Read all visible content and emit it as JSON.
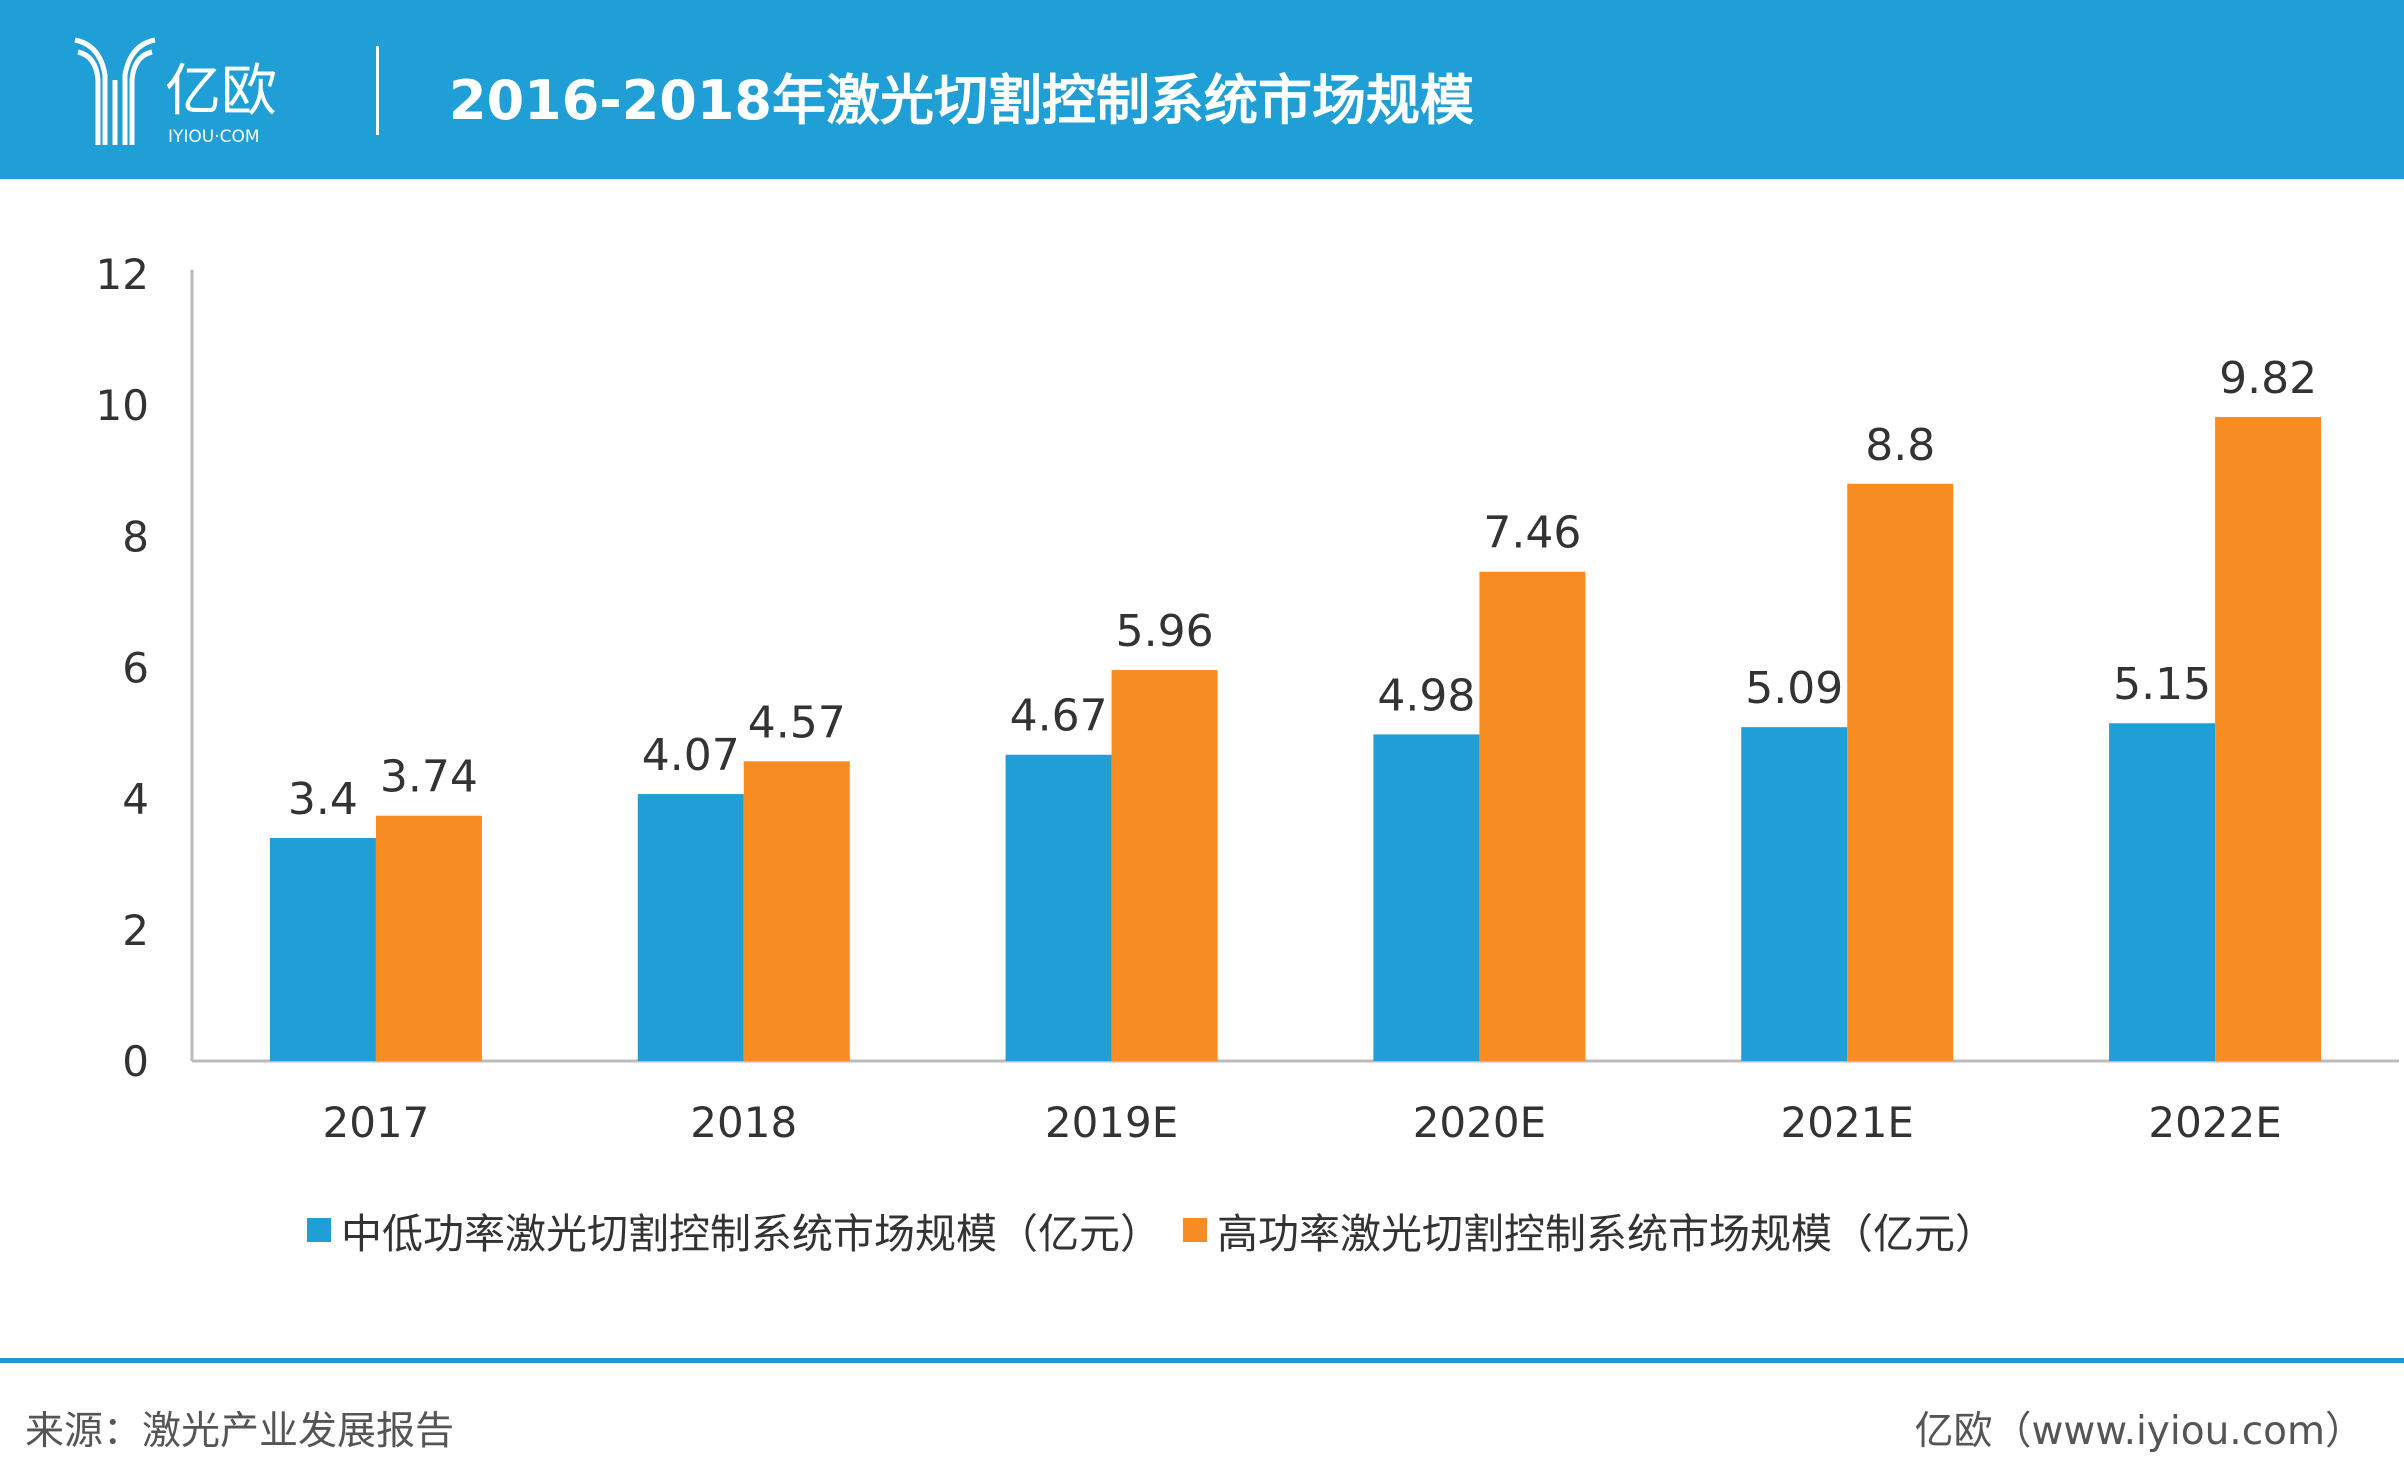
{
  "header": {
    "title": "2016-2018年激光切割控制系统市场规模",
    "logo_text": "亿欧",
    "logo_sub": "IYIOU·COM"
  },
  "colors": {
    "header": "#1f9fd5",
    "series1": "#1f9fd5",
    "series2": "#f78d22"
  },
  "chart_data": {
    "type": "bar",
    "categories": [
      "2017",
      "2018",
      "2019E",
      "2020E",
      "2021E",
      "2022E"
    ],
    "series": [
      {
        "name": "中低功率激光切割控制系统市场规模（亿元）",
        "values": [
          3.4,
          4.07,
          4.67,
          4.98,
          5.09,
          5.15
        ],
        "labels": [
          "3.4",
          "4.07",
          "4.67",
          "4.98",
          "5.09",
          "5.15"
        ]
      },
      {
        "name": "高功率激光切割控制系统市场规模（亿元）",
        "values": [
          3.74,
          4.57,
          5.96,
          7.46,
          8.8,
          9.82
        ],
        "labels": [
          "3.74",
          "4.57",
          "5.96",
          "7.46",
          "8.8",
          "9.82"
        ]
      }
    ],
    "ylim": [
      0,
      12
    ],
    "yticks": [
      "0",
      "2",
      "4",
      "6",
      "8",
      "10",
      "12"
    ],
    "grid": false,
    "legend": "bottom"
  },
  "footer": {
    "source": "来源：激光产业发展报告",
    "site": "亿欧（www.iyiou.com）"
  }
}
